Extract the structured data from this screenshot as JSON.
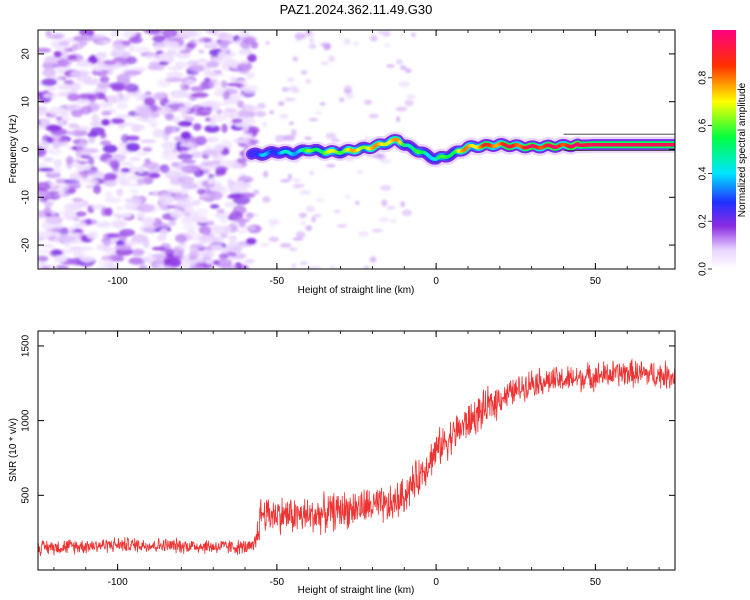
{
  "title": "PAZ1.2024.362.11.49.G30",
  "chart_data": [
    {
      "type": "heatmap",
      "title": "PAZ1.2024.362.11.49.G30",
      "xlabel": "Height of straight line (km)",
      "ylabel": "Frequency (Hz)",
      "xlim": [
        -125,
        75
      ],
      "ylim": [
        -25,
        25
      ],
      "xticks": [
        -100,
        -50,
        0,
        50
      ],
      "yticks": [
        -20,
        -10,
        0,
        10,
        20
      ],
      "colorbar": {
        "label": "Normalized spectral amplitude",
        "range": [
          0,
          1
        ],
        "ticks": [
          0.0,
          0.2,
          0.4,
          0.6,
          0.8
        ]
      },
      "ridge": {
        "x": [
          -58,
          -55,
          -50,
          -45,
          -40,
          -35,
          -30,
          -25,
          -20,
          -15,
          -12,
          -10,
          -5,
          0,
          5,
          10,
          20,
          30,
          40,
          50,
          60,
          75
        ],
        "frequency": [
          -1,
          -1,
          -0.5,
          -0.8,
          0,
          -0.5,
          -0.5,
          0,
          0.5,
          1.5,
          2,
          1,
          -0.5,
          -2,
          -1,
          0.5,
          1,
          0.5,
          0.8,
          1,
          1,
          1
        ],
        "amplitude": [
          0.25,
          0.3,
          0.35,
          0.4,
          0.55,
          0.6,
          0.65,
          0.7,
          0.7,
          0.75,
          0.7,
          0.55,
          0.5,
          0.45,
          0.6,
          0.75,
          0.85,
          0.9,
          0.9,
          0.95,
          0.95,
          0.95
        ]
      },
      "noise_region": {
        "x_range": [
          -125,
          -57
        ],
        "frequency_range": [
          -25,
          25
        ],
        "amplitude_range": [
          0.05,
          0.2
        ]
      }
    },
    {
      "type": "line",
      "xlabel": "Height of straight line (km)",
      "ylabel": "SNR (10 * v/v)",
      "xlim": [
        -125,
        75
      ],
      "ylim": [
        0,
        1600
      ],
      "xticks": [
        -100,
        -50,
        0,
        50
      ],
      "yticks": [
        500,
        1000,
        1500
      ],
      "color": "#ee3333",
      "trend": {
        "x": [
          -125,
          -100,
          -75,
          -57,
          -55,
          -40,
          -30,
          -20,
          -15,
          -10,
          -5,
          0,
          5,
          10,
          15,
          20,
          25,
          30,
          40,
          50,
          60,
          75
        ],
        "y": [
          150,
          170,
          160,
          150,
          380,
          360,
          400,
          430,
          420,
          500,
          640,
          800,
          900,
          990,
          1070,
          1150,
          1200,
          1260,
          1270,
          1300,
          1320,
          1300
        ]
      },
      "noise_amplitude": [
        {
          "x_range": [
            -125,
            -57
          ],
          "amplitude": 60
        },
        {
          "x_range": [
            -57,
            20
          ],
          "amplitude": 150
        },
        {
          "x_range": [
            20,
            75
          ],
          "amplitude": 110
        }
      ]
    }
  ]
}
